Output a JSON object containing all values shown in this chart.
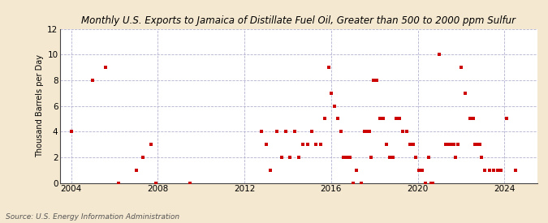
{
  "title": "Monthly U.S. Exports to Jamaica of Distillate Fuel Oil, Greater than 500 to 2000 ppm Sulfur",
  "ylabel": "Thousand Barrels per Day",
  "source": "Source: U.S. Energy Information Administration",
  "background_color": "#f5e8d0",
  "plot_background": "#ffffff",
  "marker_color": "#cc0000",
  "marker_size": 3,
  "xlim": [
    2003.5,
    2025.5
  ],
  "ylim": [
    0,
    12
  ],
  "yticks": [
    0,
    2,
    4,
    6,
    8,
    10,
    12
  ],
  "xticks": [
    2004,
    2008,
    2012,
    2016,
    2020,
    2024
  ],
  "data_points": [
    [
      2004.0,
      4.0
    ],
    [
      2005.0,
      8.0
    ],
    [
      2005.6,
      9.0
    ],
    [
      2006.2,
      0.0
    ],
    [
      2007.0,
      1.0
    ],
    [
      2007.3,
      2.0
    ],
    [
      2007.7,
      3.0
    ],
    [
      2007.9,
      0.0
    ],
    [
      2009.5,
      0.0
    ],
    [
      2012.8,
      4.0
    ],
    [
      2013.0,
      3.0
    ],
    [
      2013.2,
      1.0
    ],
    [
      2013.5,
      4.0
    ],
    [
      2013.7,
      2.0
    ],
    [
      2013.9,
      4.0
    ],
    [
      2014.1,
      2.0
    ],
    [
      2014.3,
      4.0
    ],
    [
      2014.5,
      2.0
    ],
    [
      2014.7,
      3.0
    ],
    [
      2014.9,
      3.0
    ],
    [
      2015.1,
      4.0
    ],
    [
      2015.3,
      3.0
    ],
    [
      2015.5,
      3.0
    ],
    [
      2015.7,
      5.0
    ],
    [
      2015.9,
      9.0
    ],
    [
      2016.0,
      7.0
    ],
    [
      2016.15,
      6.0
    ],
    [
      2016.3,
      5.0
    ],
    [
      2016.45,
      4.0
    ],
    [
      2016.55,
      2.0
    ],
    [
      2016.65,
      2.0
    ],
    [
      2016.75,
      2.0
    ],
    [
      2016.85,
      2.0
    ],
    [
      2017.0,
      0.0
    ],
    [
      2017.15,
      1.0
    ],
    [
      2017.4,
      0.0
    ],
    [
      2017.55,
      4.0
    ],
    [
      2017.65,
      4.0
    ],
    [
      2017.75,
      4.0
    ],
    [
      2017.85,
      2.0
    ],
    [
      2017.95,
      8.0
    ],
    [
      2018.1,
      8.0
    ],
    [
      2018.25,
      5.0
    ],
    [
      2018.4,
      5.0
    ],
    [
      2018.55,
      3.0
    ],
    [
      2018.7,
      2.0
    ],
    [
      2018.85,
      2.0
    ],
    [
      2019.0,
      5.0
    ],
    [
      2019.15,
      5.0
    ],
    [
      2019.3,
      4.0
    ],
    [
      2019.5,
      4.0
    ],
    [
      2019.65,
      3.0
    ],
    [
      2019.8,
      3.0
    ],
    [
      2019.9,
      2.0
    ],
    [
      2020.05,
      1.0
    ],
    [
      2020.2,
      1.0
    ],
    [
      2020.35,
      0.0
    ],
    [
      2020.5,
      2.0
    ],
    [
      2020.6,
      0.0
    ],
    [
      2020.7,
      0.0
    ],
    [
      2021.0,
      10.0
    ],
    [
      2021.3,
      3.0
    ],
    [
      2021.45,
      3.0
    ],
    [
      2021.55,
      3.0
    ],
    [
      2021.65,
      3.0
    ],
    [
      2021.75,
      2.0
    ],
    [
      2021.85,
      3.0
    ],
    [
      2022.0,
      9.0
    ],
    [
      2022.2,
      7.0
    ],
    [
      2022.4,
      5.0
    ],
    [
      2022.55,
      5.0
    ],
    [
      2022.65,
      3.0
    ],
    [
      2022.75,
      3.0
    ],
    [
      2022.85,
      3.0
    ],
    [
      2022.95,
      2.0
    ],
    [
      2023.1,
      1.0
    ],
    [
      2023.3,
      1.0
    ],
    [
      2023.5,
      1.0
    ],
    [
      2023.7,
      1.0
    ],
    [
      2023.85,
      1.0
    ],
    [
      2024.1,
      5.0
    ],
    [
      2024.5,
      1.0
    ]
  ]
}
